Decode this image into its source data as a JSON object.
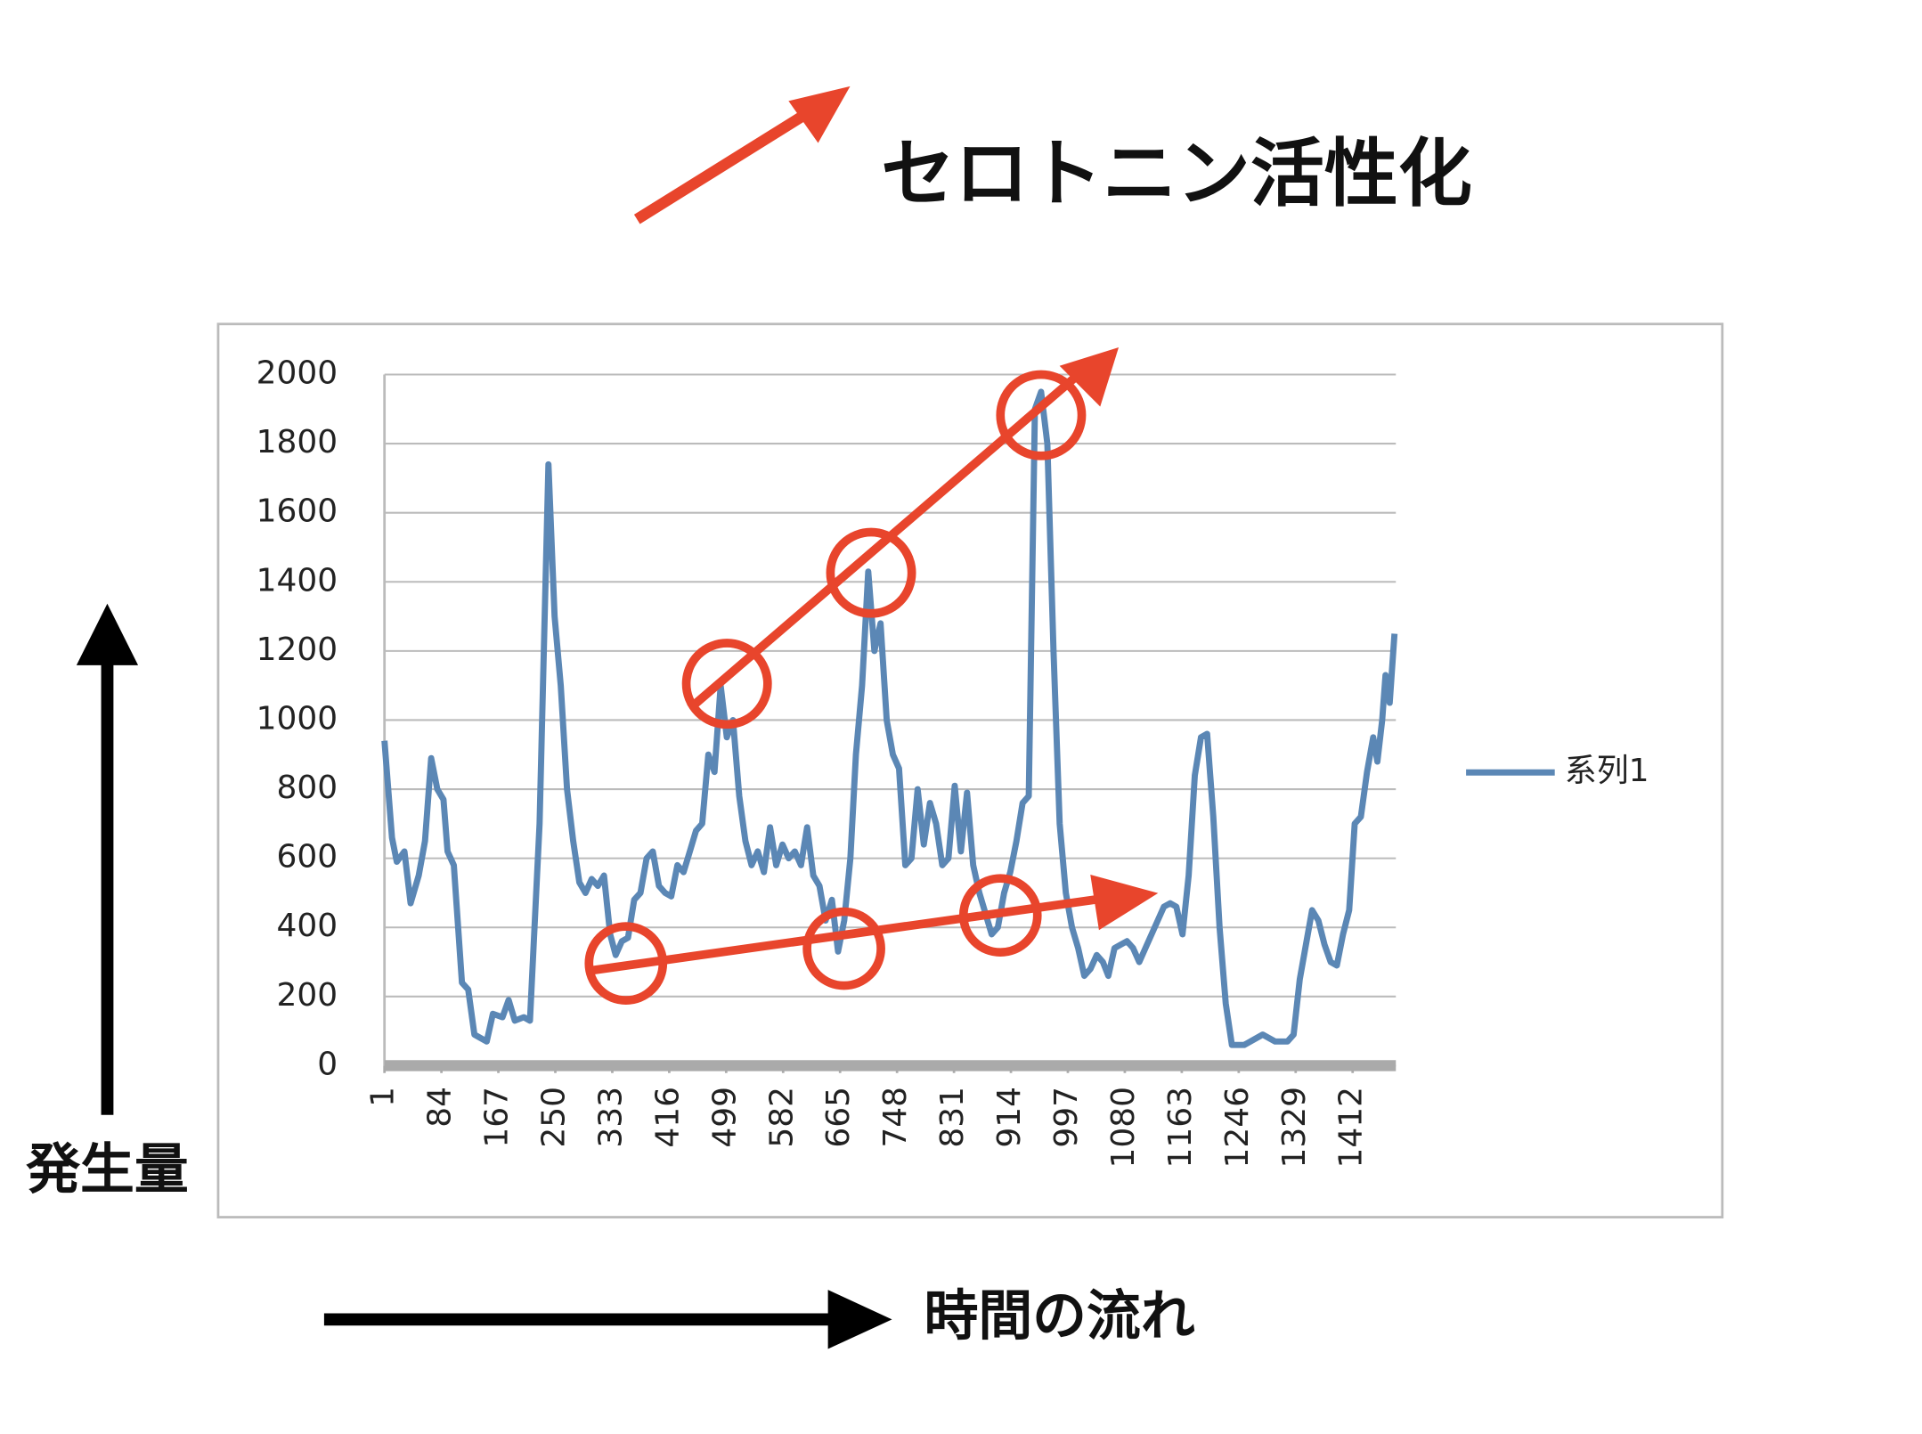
{
  "chart_data": {
    "type": "line",
    "title": "セロトニン活性化",
    "y_label": "発生量",
    "x_label": "時間の流れ",
    "xlim": [
      1,
      1475
    ],
    "ylim": [
      0,
      2000
    ],
    "yticks": [
      0,
      200,
      400,
      600,
      800,
      1000,
      1200,
      1400,
      1600,
      1800,
      2000
    ],
    "xticks": [
      1,
      84,
      167,
      250,
      333,
      416,
      499,
      582,
      665,
      748,
      831,
      914,
      997,
      1080,
      1163,
      1246,
      1329,
      1412
    ],
    "grid": true,
    "legend": "right",
    "x": [
      1,
      12,
      19,
      30,
      39,
      51,
      60,
      69,
      78,
      87,
      93,
      102,
      114,
      123,
      132,
      150,
      159,
      173,
      182,
      191,
      204,
      213,
      227,
      240,
      249,
      258,
      267,
      276,
      285,
      294,
      303,
      312,
      321,
      330,
      338,
      347,
      356,
      365,
      374,
      383,
      392,
      401,
      410,
      419,
      428,
      437,
      446,
      455,
      464,
      473,
      482,
      491,
      500,
      509,
      518,
      527,
      536,
      545,
      554,
      563,
      572,
      581,
      590,
      599,
      608,
      617,
      626,
      635,
      644,
      653,
      662,
      671,
      680,
      688,
      697,
      706,
      715,
      724,
      733,
      742,
      751,
      760,
      769,
      778,
      787,
      796,
      805,
      814,
      823,
      832,
      841,
      850,
      859,
      868,
      877,
      886,
      895,
      904,
      913,
      922,
      931,
      940,
      949,
      958,
      967,
      976,
      985,
      994,
      1003,
      1012,
      1021,
      1030,
      1039,
      1048,
      1056,
      1065,
      1074,
      1083,
      1092,
      1101,
      1110,
      1119,
      1128,
      1137,
      1146,
      1155,
      1164,
      1173,
      1182,
      1191,
      1200,
      1209,
      1218,
      1227,
      1236,
      1254,
      1272,
      1281,
      1299,
      1317,
      1326,
      1335,
      1344,
      1353,
      1362,
      1371,
      1380,
      1389,
      1398,
      1407,
      1415,
      1424,
      1433,
      1442,
      1448,
      1455,
      1460,
      1466,
      1473
    ],
    "series": [
      {
        "name": "系列1",
        "color": "#5b87b5",
        "values": [
          940,
          660,
          590,
          620,
          470,
          550,
          650,
          890,
          800,
          770,
          620,
          580,
          240,
          220,
          90,
          70,
          150,
          140,
          190,
          130,
          140,
          130,
          700,
          1740,
          1300,
          1100,
          800,
          650,
          530,
          500,
          540,
          520,
          550,
          380,
          320,
          360,
          370,
          480,
          500,
          600,
          620,
          520,
          500,
          490,
          580,
          560,
          620,
          680,
          700,
          900,
          850,
          1100,
          950,
          1000,
          780,
          650,
          580,
          620,
          560,
          690,
          580,
          640,
          600,
          620,
          580,
          690,
          550,
          520,
          420,
          480,
          330,
          420,
          600,
          900,
          1100,
          1430,
          1200,
          1280,
          1000,
          900,
          860,
          580,
          600,
          800,
          640,
          760,
          700,
          580,
          600,
          810,
          620,
          790,
          580,
          500,
          440,
          380,
          400,
          500,
          560,
          650,
          760,
          780,
          1900,
          1950,
          1800,
          1200,
          700,
          500,
          400,
          340,
          260,
          280,
          320,
          300,
          260,
          340,
          350,
          360,
          340,
          300,
          340,
          380,
          420,
          460,
          470,
          460,
          380,
          550,
          840,
          950,
          960,
          720,
          400,
          180,
          60,
          60,
          80,
          90,
          70,
          70,
          90,
          250,
          350,
          450,
          420,
          350,
          300,
          290,
          380,
          450,
          700,
          720,
          850,
          950,
          880,
          1000,
          1130,
          1050,
          1250
        ]
      }
    ]
  }
}
